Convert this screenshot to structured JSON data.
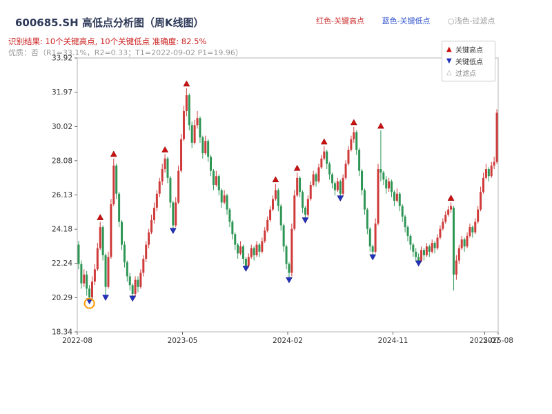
{
  "header": {
    "title": "600685.SH 高低点分析图（周K线图）",
    "legend_top": [
      {
        "label": "红色-关键高点",
        "color": "#cc3333"
      },
      {
        "label": "蓝色-关键低点",
        "color": "#3355cc"
      },
      {
        "label": "○浅色-过滤点",
        "color": "#999999"
      }
    ],
    "result_line": "识别结果: 10个关键高点, 10个关键低点  准确度: 82.5%",
    "quality_line": "优质：否（R1=33.1%，R2=0.33；T1=2022-09-02 P1=19.96）"
  },
  "chart_data": {
    "type": "candlestick",
    "title": "600685.SH 高低点分析图（周K线图）",
    "xlabel": "",
    "ylabel": "",
    "grid": false,
    "ylim": [
      18.34,
      33.92
    ],
    "y_ticks": [
      18.34,
      20.29,
      22.24,
      24.18,
      26.13,
      28.08,
      30.02,
      31.97,
      33.92
    ],
    "x_ticks": [
      {
        "week": 0,
        "label": "2022-08"
      },
      {
        "week": 39,
        "label": "2023-05"
      },
      {
        "week": 78,
        "label": "2024-02"
      },
      {
        "week": 117,
        "label": "2024-11"
      },
      {
        "week": 151,
        "label": "2025-07"
      },
      {
        "week": 156,
        "label": "2025-08"
      }
    ],
    "freq": "weekly",
    "candles": [
      [
        23.3,
        23.5,
        21.9,
        22.2
      ],
      [
        22.2,
        22.4,
        20.8,
        21.1
      ],
      [
        21.1,
        21.9,
        20.9,
        21.6
      ],
      [
        21.6,
        21.8,
        20.4,
        20.8
      ],
      [
        20.8,
        21.0,
        19.96,
        20.3
      ],
      [
        20.3,
        21.5,
        20.2,
        21.2
      ],
      [
        21.2,
        22.2,
        21.0,
        21.9
      ],
      [
        21.9,
        23.4,
        21.8,
        23.1
      ],
      [
        23.1,
        24.6,
        23.0,
        24.3
      ],
      [
        24.3,
        24.4,
        22.4,
        22.7
      ],
      [
        22.7,
        22.8,
        20.2,
        20.9
      ],
      [
        20.9,
        22.9,
        20.8,
        22.6
      ],
      [
        22.6,
        25.9,
        22.5,
        25.6
      ],
      [
        25.6,
        28.2,
        25.5,
        27.8
      ],
      [
        27.8,
        27.9,
        25.9,
        26.2
      ],
      [
        26.2,
        26.3,
        24.3,
        24.6
      ],
      [
        24.6,
        24.7,
        23.0,
        23.3
      ],
      [
        23.3,
        23.5,
        22.0,
        22.3
      ],
      [
        22.3,
        22.4,
        21.2,
        21.5
      ],
      [
        21.5,
        21.7,
        20.7,
        21.0
      ],
      [
        21.0,
        21.1,
        20.15,
        20.5
      ],
      [
        20.5,
        21.5,
        20.3,
        21.3
      ],
      [
        21.3,
        21.5,
        20.6,
        20.9
      ],
      [
        20.9,
        21.9,
        20.8,
        21.7
      ],
      [
        21.7,
        22.7,
        21.5,
        22.5
      ],
      [
        22.5,
        23.5,
        22.3,
        23.3
      ],
      [
        23.3,
        24.2,
        23.1,
        24.0
      ],
      [
        24.0,
        25.0,
        23.9,
        24.7
      ],
      [
        24.7,
        25.7,
        24.5,
        25.4
      ],
      [
        25.4,
        26.4,
        25.2,
        26.2
      ],
      [
        26.2,
        27.1,
        26.0,
        26.9
      ],
      [
        26.9,
        27.9,
        26.7,
        27.6
      ],
      [
        27.6,
        28.45,
        27.4,
        28.2
      ],
      [
        28.2,
        28.3,
        26.8,
        27.1
      ],
      [
        27.1,
        27.2,
        25.4,
        25.7
      ],
      [
        25.7,
        25.8,
        24.0,
        24.4
      ],
      [
        24.4,
        26.0,
        24.3,
        25.7
      ],
      [
        25.7,
        27.8,
        25.6,
        27.5
      ],
      [
        27.5,
        29.6,
        27.4,
        29.3
      ],
      [
        29.3,
        31.2,
        29.2,
        30.9
      ],
      [
        30.9,
        32.2,
        30.6,
        31.8
      ],
      [
        31.8,
        31.9,
        29.8,
        30.1
      ],
      [
        30.1,
        30.3,
        28.8,
        29.1
      ],
      [
        29.1,
        30.4,
        29.0,
        30.1
      ],
      [
        30.1,
        30.9,
        29.9,
        30.5
      ],
      [
        30.5,
        30.6,
        29.1,
        29.4
      ],
      [
        29.4,
        29.5,
        28.2,
        28.5
      ],
      [
        28.5,
        29.5,
        28.4,
        29.2
      ],
      [
        29.2,
        29.3,
        28.0,
        28.3
      ],
      [
        28.3,
        28.4,
        27.2,
        27.5
      ],
      [
        27.5,
        27.6,
        26.4,
        26.7
      ],
      [
        26.7,
        27.5,
        26.6,
        27.2
      ],
      [
        27.2,
        27.3,
        26.1,
        26.4
      ],
      [
        26.4,
        26.5,
        25.4,
        25.7
      ],
      [
        25.7,
        26.4,
        25.6,
        26.1
      ],
      [
        26.1,
        26.2,
        25.0,
        25.3
      ],
      [
        25.3,
        25.4,
        24.3,
        24.6
      ],
      [
        24.6,
        24.7,
        23.6,
        23.9
      ],
      [
        23.9,
        24.0,
        23.0,
        23.3
      ],
      [
        23.3,
        23.4,
        22.5,
        22.8
      ],
      [
        22.8,
        23.5,
        22.7,
        23.2
      ],
      [
        23.2,
        23.3,
        22.2,
        22.5
      ],
      [
        22.5,
        22.6,
        21.85,
        22.1
      ],
      [
        22.1,
        22.8,
        22.0,
        22.6
      ],
      [
        22.6,
        23.3,
        22.5,
        23.1
      ],
      [
        23.1,
        23.2,
        22.4,
        22.7
      ],
      [
        22.7,
        23.5,
        22.6,
        23.3
      ],
      [
        23.3,
        23.4,
        22.6,
        22.9
      ],
      [
        22.9,
        23.7,
        22.8,
        23.5
      ],
      [
        23.5,
        24.3,
        23.4,
        24.1
      ],
      [
        24.1,
        24.9,
        24.0,
        24.7
      ],
      [
        24.7,
        25.5,
        24.6,
        25.3
      ],
      [
        25.3,
        26.1,
        25.2,
        25.9
      ],
      [
        25.9,
        26.75,
        25.8,
        26.4
      ],
      [
        26.4,
        26.5,
        25.2,
        25.5
      ],
      [
        25.5,
        25.6,
        24.1,
        24.4
      ],
      [
        24.4,
        24.5,
        22.9,
        23.2
      ],
      [
        23.2,
        23.3,
        21.9,
        22.2
      ],
      [
        22.2,
        22.3,
        21.2,
        21.7
      ],
      [
        21.7,
        24.5,
        21.5,
        24.2
      ],
      [
        24.2,
        26.4,
        24.1,
        26.1
      ],
      [
        26.1,
        27.4,
        26.0,
        27.1
      ],
      [
        27.1,
        27.2,
        26.0,
        26.3
      ],
      [
        26.3,
        26.4,
        25.1,
        25.4
      ],
      [
        25.4,
        25.5,
        24.6,
        25.0
      ],
      [
        25.0,
        26.1,
        24.9,
        25.9
      ],
      [
        25.9,
        26.9,
        25.8,
        26.7
      ],
      [
        26.7,
        27.5,
        26.6,
        27.3
      ],
      [
        27.3,
        27.4,
        26.6,
        26.9
      ],
      [
        26.9,
        27.9,
        26.8,
        27.7
      ],
      [
        27.7,
        28.4,
        27.6,
        28.2
      ],
      [
        28.2,
        28.9,
        28.1,
        28.6
      ],
      [
        28.6,
        28.7,
        27.6,
        27.9
      ],
      [
        27.9,
        28.0,
        27.0,
        27.3
      ],
      [
        27.3,
        27.4,
        26.5,
        26.8
      ],
      [
        26.8,
        26.9,
        26.1,
        26.4
      ],
      [
        26.4,
        27.1,
        26.3,
        26.9
      ],
      [
        26.9,
        27.0,
        25.85,
        26.2
      ],
      [
        26.2,
        27.3,
        26.1,
        27.1
      ],
      [
        27.1,
        28.1,
        27.0,
        27.9
      ],
      [
        27.9,
        28.9,
        27.8,
        28.7
      ],
      [
        28.7,
        29.5,
        28.6,
        29.3
      ],
      [
        29.3,
        30.0,
        29.1,
        29.7
      ],
      [
        29.7,
        29.8,
        28.4,
        28.7
      ],
      [
        28.7,
        28.8,
        27.2,
        27.5
      ],
      [
        27.5,
        27.6,
        26.1,
        26.4
      ],
      [
        26.4,
        26.5,
        25.0,
        25.3
      ],
      [
        25.3,
        25.4,
        23.9,
        24.2
      ],
      [
        24.2,
        24.3,
        22.9,
        23.2
      ],
      [
        23.2,
        23.3,
        22.5,
        22.9
      ],
      [
        22.9,
        24.8,
        22.8,
        24.5
      ],
      [
        24.5,
        27.9,
        24.4,
        27.6
      ],
      [
        27.6,
        29.8,
        26.9,
        27.4
      ],
      [
        27.4,
        27.5,
        26.7,
        27.0
      ],
      [
        27.0,
        27.2,
        26.2,
        26.5
      ],
      [
        26.5,
        27.1,
        26.3,
        26.9
      ],
      [
        26.9,
        27.0,
        26.0,
        26.3
      ],
      [
        26.3,
        26.4,
        25.5,
        25.8
      ],
      [
        25.8,
        26.5,
        25.7,
        26.2
      ],
      [
        26.2,
        26.3,
        25.2,
        25.5
      ],
      [
        25.5,
        25.6,
        24.6,
        24.9
      ],
      [
        24.9,
        25.0,
        24.0,
        24.3
      ],
      [
        24.3,
        24.4,
        23.5,
        23.8
      ],
      [
        23.8,
        23.9,
        23.0,
        23.3
      ],
      [
        23.3,
        23.4,
        22.6,
        22.9
      ],
      [
        22.9,
        23.1,
        22.4,
        22.6
      ],
      [
        22.6,
        22.8,
        22.15,
        22.4
      ],
      [
        22.4,
        23.2,
        22.3,
        23.0
      ],
      [
        23.0,
        23.1,
        22.4,
        22.7
      ],
      [
        22.7,
        23.4,
        22.6,
        23.2
      ],
      [
        23.2,
        23.3,
        22.6,
        22.9
      ],
      [
        22.9,
        23.6,
        22.8,
        23.4
      ],
      [
        23.4,
        23.5,
        22.8,
        23.1
      ],
      [
        23.1,
        23.9,
        23.0,
        23.7
      ],
      [
        23.7,
        24.4,
        23.6,
        24.2
      ],
      [
        24.2,
        24.8,
        24.1,
        24.6
      ],
      [
        24.6,
        25.2,
        24.5,
        25.0
      ],
      [
        25.0,
        25.5,
        24.9,
        25.3
      ],
      [
        25.3,
        25.7,
        25.1,
        25.5
      ],
      [
        25.4,
        25.5,
        20.7,
        21.6
      ],
      [
        21.6,
        22.7,
        21.3,
        22.4
      ],
      [
        22.4,
        23.3,
        22.2,
        23.1
      ],
      [
        23.1,
        23.8,
        23.0,
        23.6
      ],
      [
        23.6,
        23.7,
        22.9,
        23.2
      ],
      [
        23.2,
        24.0,
        23.1,
        23.8
      ],
      [
        23.8,
        24.5,
        23.7,
        24.3
      ],
      [
        24.3,
        24.4,
        23.7,
        24.0
      ],
      [
        24.0,
        24.8,
        23.9,
        24.6
      ],
      [
        24.6,
        25.5,
        24.5,
        25.3
      ],
      [
        25.3,
        26.6,
        25.2,
        26.3
      ],
      [
        26.3,
        27.4,
        26.2,
        27.1
      ],
      [
        27.1,
        27.9,
        27.0,
        27.6
      ],
      [
        27.6,
        27.7,
        26.9,
        27.2
      ],
      [
        27.2,
        28.0,
        27.1,
        27.8
      ],
      [
        27.8,
        28.3,
        27.6,
        28.0
      ],
      [
        28.0,
        31.0,
        27.9,
        30.8
      ]
    ],
    "key_highs": [
      {
        "week": 8,
        "price": 24.85
      },
      {
        "week": 13,
        "price": 28.45
      },
      {
        "week": 32,
        "price": 28.7
      },
      {
        "week": 40,
        "price": 32.45
      },
      {
        "week": 73,
        "price": 27.0
      },
      {
        "week": 81,
        "price": 27.65
      },
      {
        "week": 91,
        "price": 29.15
      },
      {
        "week": 102,
        "price": 30.25
      },
      {
        "week": 112,
        "price": 30.05
      },
      {
        "week": 138,
        "price": 25.95
      }
    ],
    "key_lows": [
      {
        "week": 4,
        "price": 20.1
      },
      {
        "week": 10,
        "price": 20.3
      },
      {
        "week": 20,
        "price": 20.25
      },
      {
        "week": 35,
        "price": 24.1
      },
      {
        "week": 62,
        "price": 21.95
      },
      {
        "week": 78,
        "price": 21.3
      },
      {
        "week": 84,
        "price": 24.7
      },
      {
        "week": 97,
        "price": 25.95
      },
      {
        "week": 109,
        "price": 22.6
      },
      {
        "week": 126,
        "price": 22.25
      }
    ],
    "highlight_circle": {
      "week": 4,
      "price": 19.96,
      "note": "T1=2022-09-02 P1=19.96"
    },
    "legend": [
      {
        "label": "关键高点"
      },
      {
        "label": "关键低点"
      },
      {
        "label": "过滤点"
      }
    ],
    "colors": {
      "up_candle": "#cf3a3a",
      "down_candle": "#2e9655",
      "high_marker": "#cc1111",
      "low_marker": "#2233bb",
      "filter_circle": "#ff9900",
      "axis": "#b3b3b3",
      "tick_text": "#333333"
    }
  }
}
